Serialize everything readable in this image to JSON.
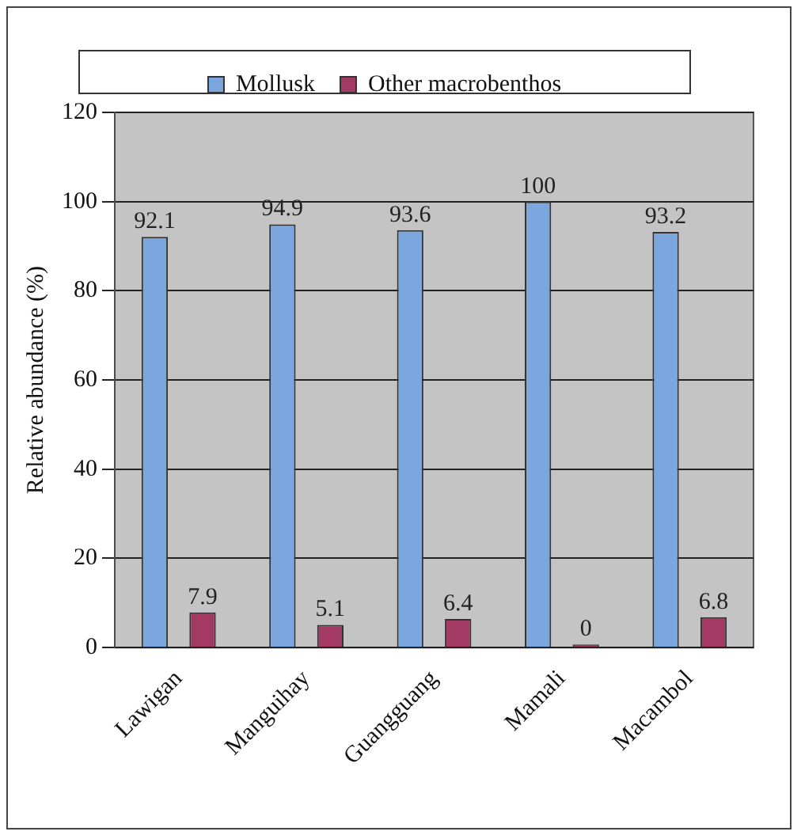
{
  "chart_data": {
    "type": "bar",
    "categories": [
      "Lawigan",
      "Manguihay",
      "Guangguang",
      "Mamali",
      "Macambol"
    ],
    "series": [
      {
        "name": "Mollusk",
        "color": "#7ba7de",
        "values": [
          92.1,
          94.9,
          93.6,
          100,
          93.2
        ]
      },
      {
        "name": "Other macrobenthos",
        "color": "#a23a63",
        "values": [
          7.9,
          5.1,
          6.4,
          0,
          6.8
        ]
      }
    ],
    "ylabel": "Relative abundance (%)",
    "ylim": [
      0,
      120
    ],
    "yticks": [
      0,
      20,
      40,
      60,
      80,
      100,
      120
    ],
    "grid": "y",
    "legend": "top",
    "data_labels": true
  }
}
